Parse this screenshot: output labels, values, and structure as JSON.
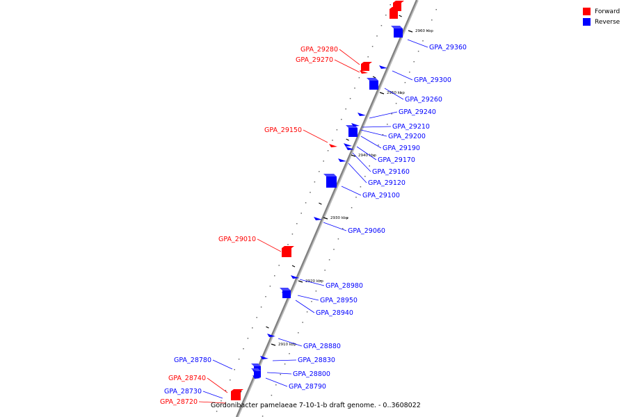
{
  "caption": "Gordonibacter pamelaeae 7-10-1-b draft genome. - 0..3608022",
  "colors": {
    "forward": "#ff0000",
    "reverse": "#0000ff",
    "backbone": "#808080"
  },
  "legend": [
    {
      "label": "Forward",
      "strand": "forward"
    },
    {
      "label": "Reverse",
      "strand": "reverse"
    }
  ],
  "scale_labels": [
    "2960 kbp",
    "2950 kbp",
    "2940 kbp",
    "2930 kbp",
    "2920 kbp",
    "2910 kbp"
  ],
  "genes": [
    {
      "id": "GPA_29360",
      "strand": "reverse"
    },
    {
      "id": "GPA_29280",
      "strand": "forward"
    },
    {
      "id": "GPA_29270",
      "strand": "forward"
    },
    {
      "id": "GPA_29300",
      "strand": "reverse"
    },
    {
      "id": "GPA_29260",
      "strand": "reverse"
    },
    {
      "id": "GPA_29240",
      "strand": "reverse"
    },
    {
      "id": "GPA_29150",
      "strand": "forward"
    },
    {
      "id": "GPA_29210",
      "strand": "reverse"
    },
    {
      "id": "GPA_29200",
      "strand": "reverse"
    },
    {
      "id": "GPA_29190",
      "strand": "reverse"
    },
    {
      "id": "GPA_29170",
      "strand": "reverse"
    },
    {
      "id": "GPA_29160",
      "strand": "reverse"
    },
    {
      "id": "GPA_29120",
      "strand": "reverse"
    },
    {
      "id": "GPA_29100",
      "strand": "reverse"
    },
    {
      "id": "GPA_29060",
      "strand": "reverse"
    },
    {
      "id": "GPA_29010",
      "strand": "forward"
    },
    {
      "id": "GPA_28980",
      "strand": "reverse"
    },
    {
      "id": "GPA_28950",
      "strand": "reverse"
    },
    {
      "id": "GPA_28940",
      "strand": "reverse"
    },
    {
      "id": "GPA_28880",
      "strand": "reverse"
    },
    {
      "id": "GPA_28780",
      "strand": "reverse"
    },
    {
      "id": "GPA_28830",
      "strand": "reverse"
    },
    {
      "id": "GPA_28740",
      "strand": "forward"
    },
    {
      "id": "GPA_28800",
      "strand": "reverse"
    },
    {
      "id": "GPA_28730",
      "strand": "reverse"
    },
    {
      "id": "GPA_28790",
      "strand": "reverse"
    },
    {
      "id": "GPA_28720",
      "strand": "forward"
    }
  ]
}
